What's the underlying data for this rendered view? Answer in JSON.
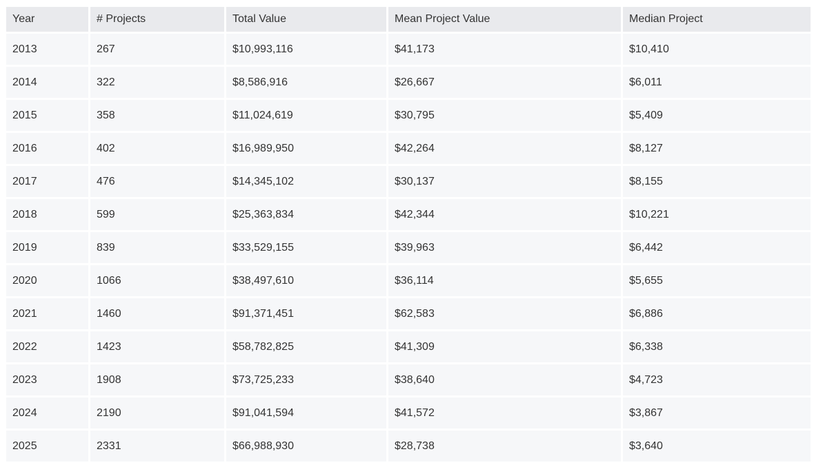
{
  "table": {
    "headers": [
      "Year",
      "# Projects",
      "Total Value",
      "Mean Project Value",
      "Median Project"
    ],
    "rows": [
      [
        "2013",
        "267",
        "$10,993,116",
        "$41,173",
        "$10,410"
      ],
      [
        "2014",
        "322",
        "$8,586,916",
        "$26,667",
        "$6,011"
      ],
      [
        "2015",
        "358",
        "$11,024,619",
        "$30,795",
        "$5,409"
      ],
      [
        "2016",
        "402",
        "$16,989,950",
        "$42,264",
        "$8,127"
      ],
      [
        "2017",
        "476",
        "$14,345,102",
        "$30,137",
        "$8,155"
      ],
      [
        "2018",
        "599",
        "$25,363,834",
        "$42,344",
        "$10,221"
      ],
      [
        "2019",
        "839",
        "$33,529,155",
        "$39,963",
        "$6,442"
      ],
      [
        "2020",
        "1066",
        "$38,497,610",
        "$36,114",
        "$5,655"
      ],
      [
        "2021",
        "1460",
        "$91,371,451",
        "$62,583",
        "$6,886"
      ],
      [
        "2022",
        "1423",
        "$58,782,825",
        "$41,309",
        "$6,338"
      ],
      [
        "2023",
        "1908",
        "$73,725,233",
        "$38,640",
        "$4,723"
      ],
      [
        "2024",
        "2190",
        "$91,041,594",
        "$41,572",
        "$3,867"
      ],
      [
        "2025",
        "2331",
        "$66,988,930",
        "$28,738",
        "$3,640"
      ]
    ]
  }
}
